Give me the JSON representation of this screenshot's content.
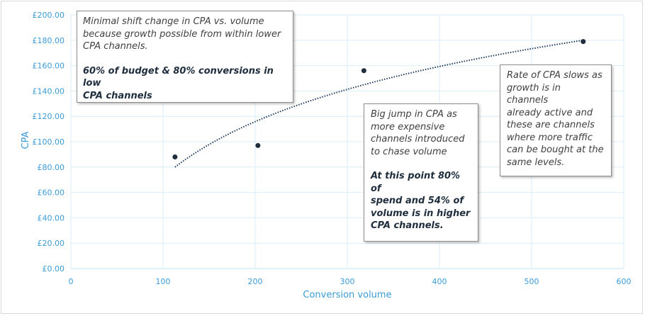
{
  "chart_data": {
    "type": "scatter",
    "xlabel": "Conversion volume",
    "ylabel": "CPA",
    "xlim": [
      0,
      600
    ],
    "ylim": [
      0,
      200
    ],
    "x_ticks": [
      "0",
      "100",
      "200",
      "300",
      "400",
      "500",
      "600"
    ],
    "y_ticks": [
      "£0.00",
      "£20.00",
      "£40.00",
      "£60.00",
      "£80.00",
      "£100.00",
      "£120.00",
      "£140.00",
      "£160.00",
      "£180.00",
      "£200.00"
    ],
    "grid": true,
    "points": [
      {
        "x": 113,
        "y": 88
      },
      {
        "x": 203,
        "y": 97
      },
      {
        "x": 318,
        "y": 156
      },
      {
        "x": 556,
        "y": 179
      }
    ],
    "trendline": {
      "style": "dotted",
      "type": "logarithmic",
      "x_start": 113,
      "y_start": 80,
      "x_end": 556,
      "y_end": 180
    },
    "colors": {
      "axis_text": "#3a9bd5",
      "points": "#1f2d3d",
      "trend": "#1f3a5a",
      "grid": "#d9eef8"
    },
    "annotations": [
      {
        "lines": [
          "Minimal shift change in CPA vs. volume",
          "because growth possible from within lower",
          "CPA channels."
        ],
        "bold_lines": [
          "60% of budget & 80% conversions in low",
          "CPA channels"
        ]
      },
      {
        "lines": [
          "Big jump in CPA as",
          "more expensive",
          "channels introduced",
          "to chase volume"
        ],
        "bold_lines": [
          "At this point 80% of",
          "spend and 54% of",
          "volume is in higher",
          "CPA channels."
        ]
      },
      {
        "lines": [
          "Rate of CPA slows as",
          "growth is in channels",
          "already active and",
          "these are channels",
          "where more traffic",
          "can be bought at the",
          "same levels."
        ],
        "bold_lines": []
      }
    ]
  }
}
